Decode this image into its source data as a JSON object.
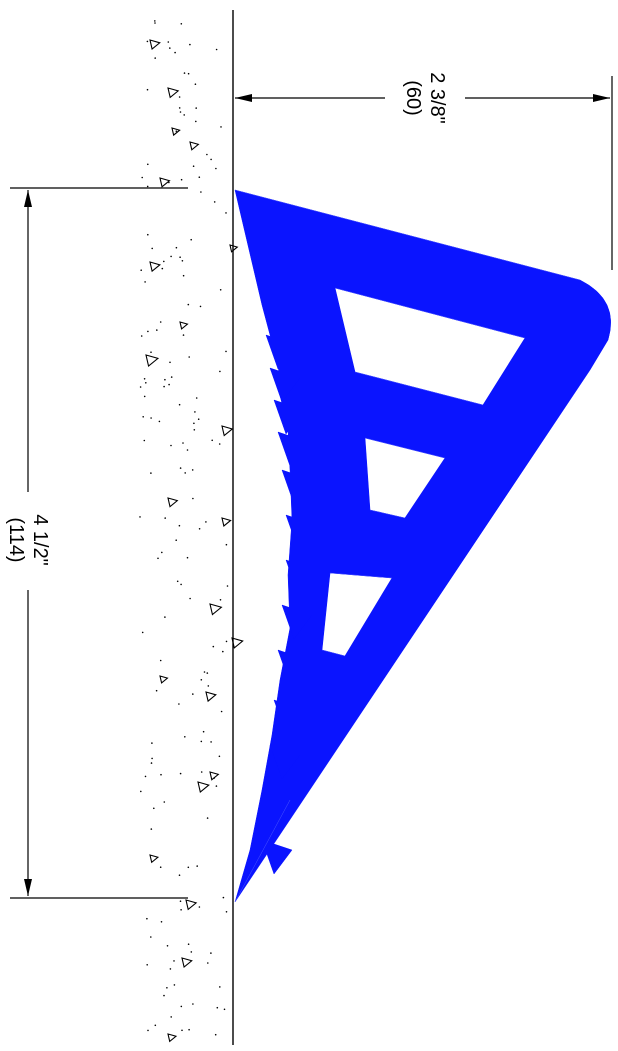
{
  "dimensions": {
    "height": {
      "imperial": "2 3/8\"",
      "metric": "(60)"
    },
    "length": {
      "imperial": "4 1/2\"",
      "metric": "(114)"
    }
  },
  "colors": {
    "profile": "#0a14ff",
    "lines": "#000000",
    "background": "#ffffff"
  }
}
